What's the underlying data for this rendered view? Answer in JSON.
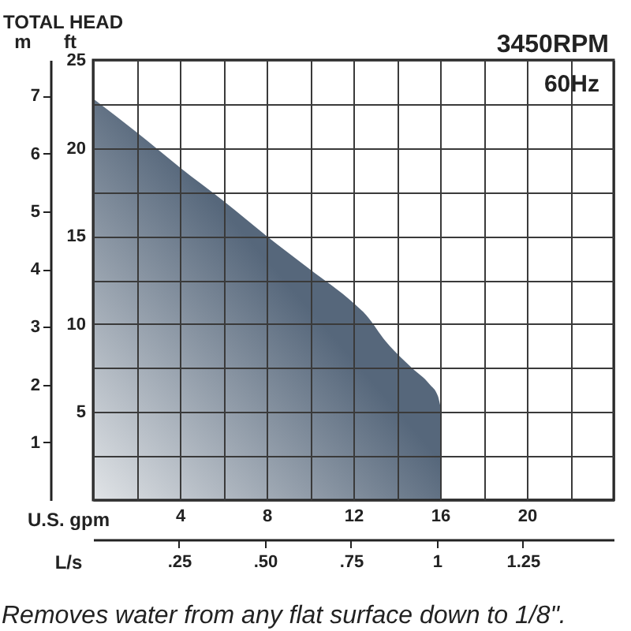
{
  "chart_data": {
    "type": "area",
    "annotations": [
      "TOTAL HEAD",
      "3450RPM",
      "60Hz",
      "Removes water from any flat surface down to 1/8\"."
    ],
    "xlabel": "U.S. gpm",
    "ylabel": "ft",
    "y2label": "m",
    "x2label": "L/s",
    "x": [
      0,
      2,
      4,
      6,
      8,
      10,
      12,
      12.6,
      13.5,
      14.7,
      15.5,
      15.9,
      16
    ],
    "series": [
      {
        "color": "#56677b",
        "values": [
          22.8,
          20.9,
          18.9,
          17.0,
          15.0,
          13.1,
          11.2,
          10.5,
          9.0,
          7.5,
          6.6,
          5.9,
          5.4
        ]
      }
    ],
    "xlim": [
      0,
      24
    ],
    "xticks": [
      {
        "value": 0,
        "label": null
      },
      {
        "value": 2,
        "label": null
      },
      4,
      {
        "value": 6,
        "label": null
      },
      8,
      {
        "value": 10,
        "label": null
      },
      12,
      {
        "value": 14,
        "label": null
      },
      16,
      {
        "value": 18,
        "label": null
      },
      20,
      {
        "value": 22,
        "label": null
      },
      {
        "value": 24,
        "label": null
      }
    ],
    "ylim": [
      0,
      25
    ],
    "yticks": [
      {
        "value": 0,
        "label": null
      },
      {
        "value": 2.5,
        "label": null
      },
      5,
      {
        "value": 7.5,
        "label": null
      },
      10,
      {
        "value": 12.5,
        "label": null
      },
      15,
      {
        "value": 17.5,
        "label": null
      },
      20,
      {
        "value": 22.5,
        "label": null
      },
      25
    ],
    "y2lim": [
      0,
      7.62
    ],
    "y2ticks": [
      1,
      2,
      3,
      4,
      5,
      6,
      7
    ],
    "x2lim": [
      0,
      1.514
    ],
    "x2ticks": [
      {
        "value": 0.25,
        "label": ".25"
      },
      {
        "value": 0.5,
        "label": ".50"
      },
      {
        "value": 0.75,
        "label": ".75"
      },
      1,
      1.25
    ],
    "grid": true
  }
}
